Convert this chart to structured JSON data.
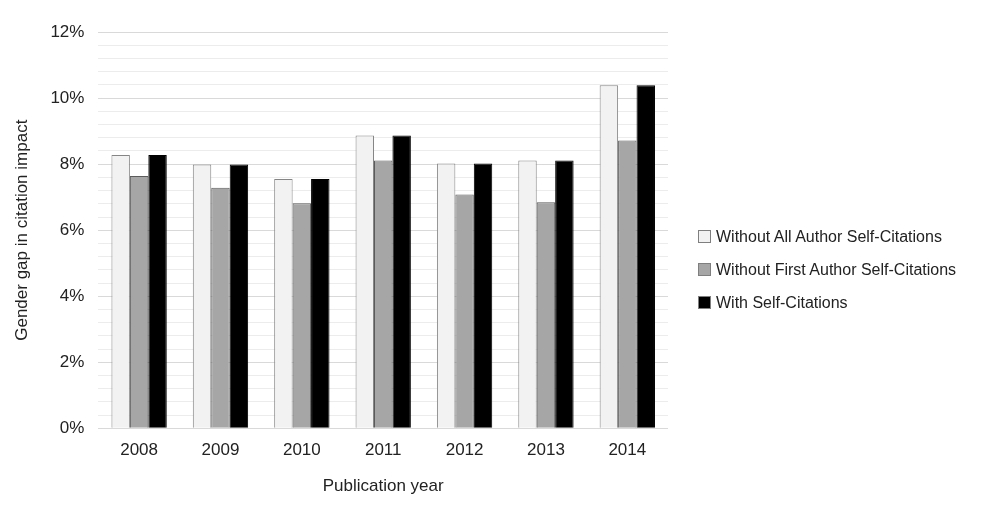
{
  "chart_data": {
    "type": "bar",
    "xlabel": "Publication year",
    "ylabel": "Gender gap in citation impact",
    "categories": [
      "2008",
      "2009",
      "2010",
      "2011",
      "2012",
      "2013",
      "2014"
    ],
    "series": [
      {
        "name": "Without All Author Self-Citations",
        "color": "#f2f2f2",
        "values": [
          8.28,
          7.99,
          7.55,
          8.87,
          8.02,
          8.11,
          10.39
        ]
      },
      {
        "name": "Without First Author Self-Citations",
        "color": "#a6a6a6",
        "values": [
          7.64,
          7.29,
          6.82,
          8.11,
          7.08,
          6.85,
          8.72
        ]
      },
      {
        "name": "With Self-Citations",
        "color": "#000000",
        "values": [
          8.28,
          7.99,
          7.55,
          8.87,
          8.02,
          8.11,
          10.39
        ]
      }
    ],
    "ylim": [
      0,
      12
    ],
    "yticks": [
      {
        "value": 0,
        "label": "0%"
      },
      {
        "value": 0.4,
        "label": null
      },
      {
        "value": 0.8,
        "label": null
      },
      {
        "value": 1.2,
        "label": null
      },
      {
        "value": 1.6,
        "label": null
      },
      {
        "value": 2,
        "label": "2%"
      },
      {
        "value": 2.4,
        "label": null
      },
      {
        "value": 2.8,
        "label": null
      },
      {
        "value": 3.2,
        "label": null
      },
      {
        "value": 3.6,
        "label": null
      },
      {
        "value": 4,
        "label": "4%"
      },
      {
        "value": 4.4,
        "label": null
      },
      {
        "value": 4.8,
        "label": null
      },
      {
        "value": 5.2,
        "label": null
      },
      {
        "value": 5.6,
        "label": null
      },
      {
        "value": 6,
        "label": "6%"
      },
      {
        "value": 6.4,
        "label": null
      },
      {
        "value": 6.8,
        "label": null
      },
      {
        "value": 7.2,
        "label": null
      },
      {
        "value": 7.6,
        "label": null
      },
      {
        "value": 8,
        "label": "8%"
      },
      {
        "value": 8.4,
        "label": null
      },
      {
        "value": 8.8,
        "label": null
      },
      {
        "value": 9.2,
        "label": null
      },
      {
        "value": 9.6,
        "label": null
      },
      {
        "value": 10,
        "label": "10%"
      },
      {
        "value": 10.4,
        "label": null
      },
      {
        "value": 10.8,
        "label": null
      },
      {
        "value": 11.2,
        "label": null
      },
      {
        "value": 11.6,
        "label": null
      },
      {
        "value": 12,
        "label": "12%"
      }
    ],
    "grid": "y",
    "legend": "right"
  }
}
